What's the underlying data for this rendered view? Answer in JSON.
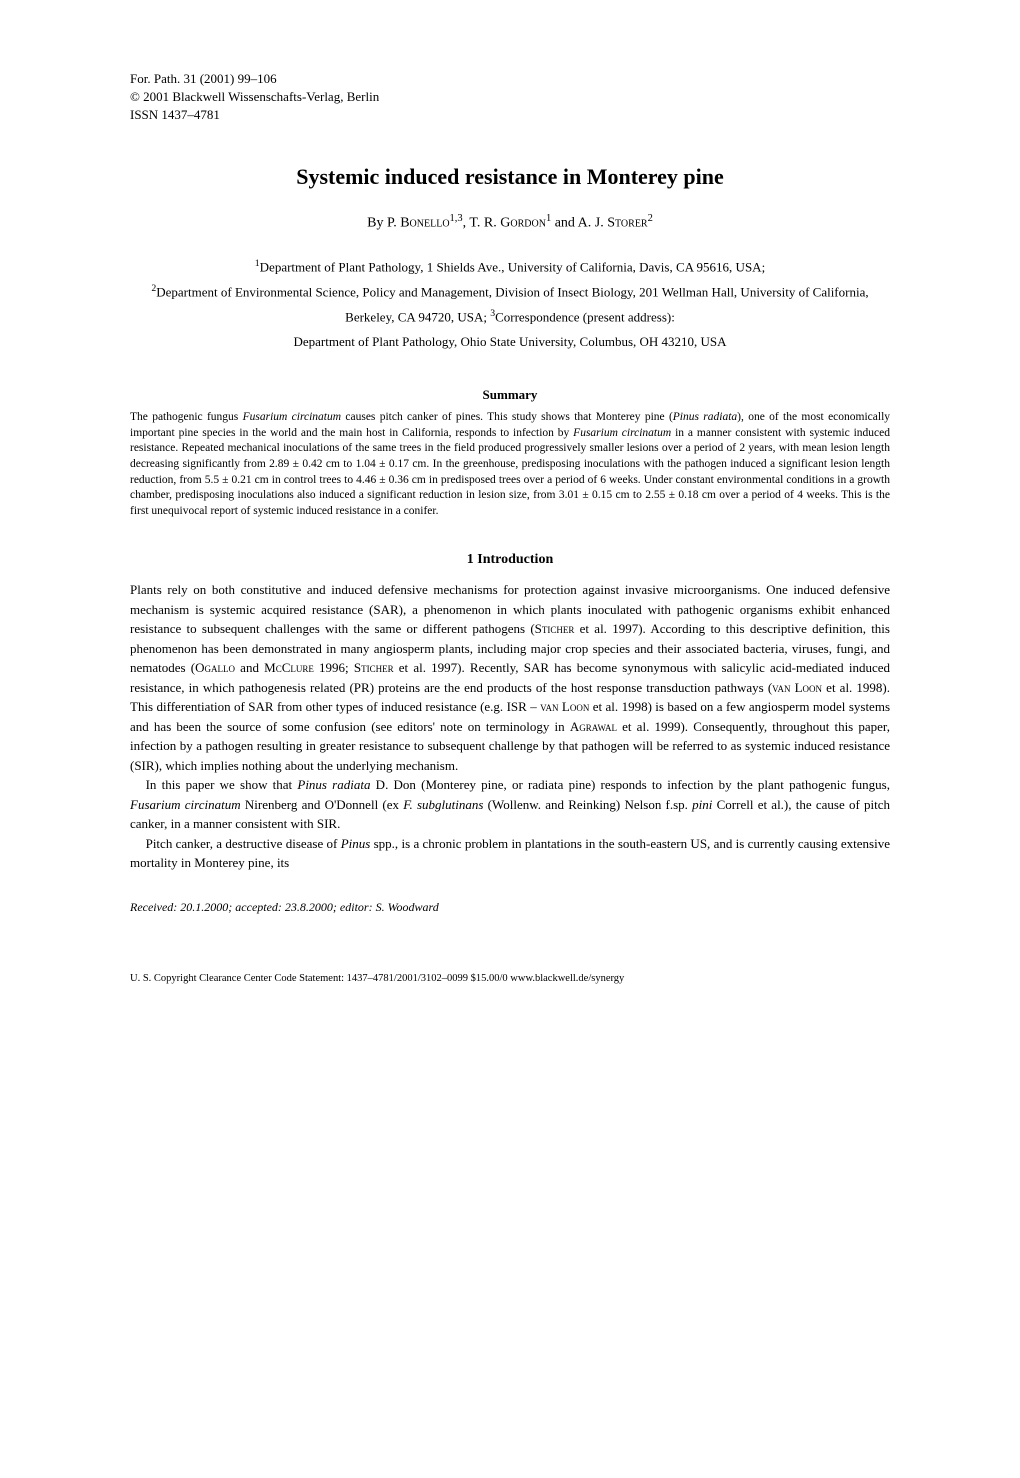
{
  "journal": {
    "line1": "For. Path. 31 (2001) 99–106",
    "line2": "© 2001 Blackwell Wissenschafts-Verlag, Berlin",
    "line3": "ISSN 1437–4781"
  },
  "title": "Systemic induced resistance in Monterey pine",
  "byline_prefix": "By ",
  "authors": [
    {
      "initials": "P. ",
      "surname": "Bonello",
      "sup": "1,3"
    },
    {
      "initials": "T. R. ",
      "surname": "Gordon",
      "sup": "1"
    },
    {
      "initials": "A. J. ",
      "surname": "Storer",
      "sup": "2"
    }
  ],
  "affiliations": {
    "a1": "Department of Plant Pathology, 1 Shields Ave., University of California, Davis, CA 95616, USA;",
    "a2": "Department of Environmental Science, Policy and Management, Division of Insect Biology, 201 Wellman Hall, University of California, Berkeley, CA 94720, USA; ",
    "a3_label": "Correspondence (present address): ",
    "a3": "Department of Plant Pathology, Ohio State University, Columbus, OH 43210, USA"
  },
  "summary_heading": "Summary",
  "summary": {
    "s1": "The pathogenic fungus ",
    "i1": "Fusarium circinatum",
    "s2": " causes pitch canker of pines. This study shows that Monterey pine (",
    "i2": "Pinus radiata",
    "s3": "), one of the most economically important pine species in the world and the main host in California, responds to infection by ",
    "i3": "Fusarium circinatum",
    "s4": " in a manner consistent with systemic induced resistance. Repeated mechanical inoculations of the same trees in the field produced progressively smaller lesions over a period of 2 years, with mean lesion length decreasing significantly from 2.89 ± 0.42 cm to 1.04 ± 0.17 cm. In the greenhouse, predisposing inoculations with the pathogen induced a significant lesion length reduction, from 5.5 ± 0.21 cm in control trees to 4.46 ± 0.36 cm in predisposed trees over a period of 6 weeks. Under constant environmental conditions in a growth chamber, predisposing inoculations also induced a significant reduction in lesion size, from 3.01 ± 0.15 cm to 2.55 ± 0.18 cm over a period of 4 weeks. This is the first unequivocal report of systemic induced resistance in a conifer."
  },
  "section1_heading": "1 Introduction",
  "para1": {
    "s1": "Plants rely on both constitutive and induced defensive mechanisms for protection against invasive microorganisms. One induced defensive mechanism is systemic acquired resistance (SAR), a phenomenon in which plants inoculated with pathogenic organisms exhibit enhanced resistance to subsequent challenges with the same or different pathogens (",
    "sc1": "Sticher",
    "s2": " et al. 1997). According to this descriptive definition, this phenomenon has been demonstrated in many angiosperm plants, including major crop species and their associated bacteria, viruses, fungi, and nematodes (",
    "sc2": "Ogallo",
    "s3": " and ",
    "sc3": "McClure",
    "s4": " 1996; ",
    "sc4": "Sticher",
    "s5": " et al. 1997). Recently, SAR has become synonymous with salicylic acid-mediated induced resistance, in which pathogenesis related (PR) proteins are the end products of the host response transduction pathways (",
    "sc5": "van Loon",
    "s6": " et al. 1998). This differentiation of SAR from other types of induced resistance (e.g. ISR – ",
    "sc6": "van Loon",
    "s7": " et al. 1998) is based on a few angiosperm model systems and has been the source of some confusion (see editors' note on terminology in ",
    "sc7": "Agrawal",
    "s8": " et al. 1999). Consequently, throughout this paper, infection by a pathogen resulting in greater resistance to subsequent challenge by that pathogen will be referred to as systemic induced resistance (SIR), which implies nothing about the underlying mechanism."
  },
  "para2": {
    "s1": "In this paper we show that ",
    "i1": "Pinus radiata",
    "s2": " D. Don (Monterey pine, or radiata pine) responds to infection by the plant pathogenic fungus, ",
    "i2": "Fusarium circinatum",
    "s3": " Nirenberg and O'Donnell (ex ",
    "i3": "F. subglutinans",
    "s4": " (Wollenw. and Reinking) Nelson f.sp. ",
    "i4": "pini",
    "s5": " Correll et al.), the cause of pitch canker, in a manner consistent with SIR."
  },
  "para3": {
    "s1": "Pitch canker, a destructive disease of ",
    "i1": "Pinus",
    "s2": " spp., is a chronic problem in plantations in the south-eastern US, and is currently causing extensive mortality in Monterey pine, its"
  },
  "received": "Received: 20.1.2000; accepted: 23.8.2000; editor: S. Woodward",
  "footer": "U. S. Copyright Clearance Center Code Statement:  1437–4781/2001/3102–0099 $15.00/0    www.blackwell.de/synergy"
}
